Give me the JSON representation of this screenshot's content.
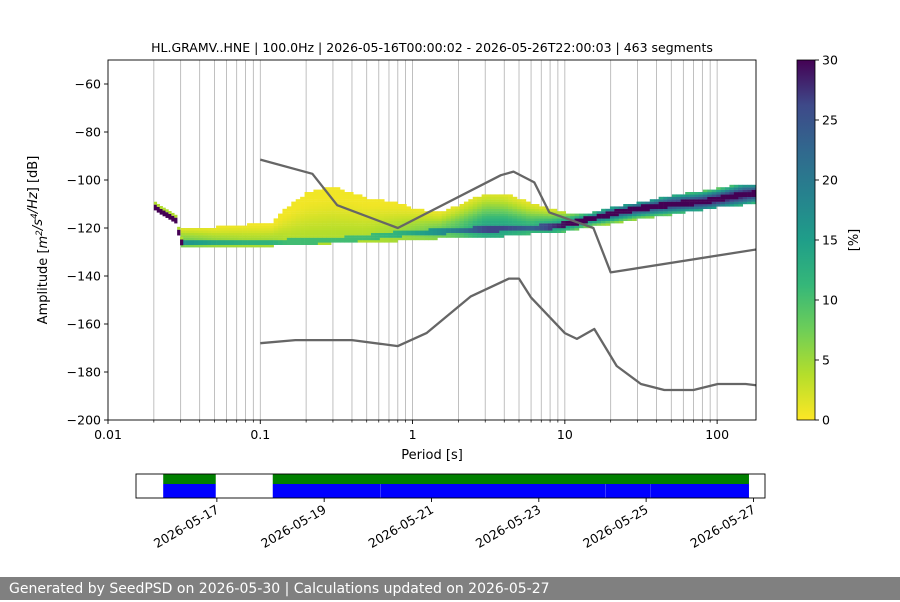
{
  "title": "HL.GRAMV..HNE | 100.0Hz | 2026-05-16T00:00:02 - 2026-05-26T22:00:03 | 463 segments",
  "footer": "Generated by SeedPSD on 2026-05-30 | Calculations updated on 2026-05-27",
  "colors": {
    "nlnm_nhnm": "#666666",
    "grid": "#b0b0b0",
    "availability_top": "#008000",
    "availability_bottom": "#0000ff",
    "footer_bg": "#808080"
  },
  "chart_data": [
    {
      "type": "heatmap",
      "subtype": "probabilistic power spectral density",
      "title": "HL.GRAMV..HNE | 100.0Hz | 2026-05-16T00:00:02 - 2026-05-26T22:00:03 | 463 segments",
      "xlabel": "Period [s]",
      "ylabel": "Amplitude [m²/s⁴/Hz] [dB]",
      "xscale": "log",
      "xlim": [
        0.01,
        180
      ],
      "ylim": [
        -200,
        -50
      ],
      "xticks": [
        0.01,
        0.1,
        1,
        10,
        100
      ],
      "xtick_labels": [
        "0.01",
        "0.1",
        "1",
        "10",
        "100"
      ],
      "yticks": [
        -200,
        -180,
        -160,
        -140,
        -120,
        -100,
        -80,
        -60
      ],
      "ytick_labels": [
        "−200",
        "−180",
        "−160",
        "−140",
        "−120",
        "−100",
        "−80",
        "−60"
      ],
      "grid": "vertical at log minor ticks",
      "colormap": "viridis_r",
      "colorbar": {
        "label": "[%]",
        "range": [
          0,
          30
        ],
        "ticks": [
          0,
          5,
          10,
          15,
          20,
          25,
          30
        ],
        "tick_labels": [
          "0",
          "5",
          "10",
          "15",
          "20",
          "25",
          "30"
        ]
      },
      "mode_curve": {
        "period": [
          0.02,
          0.022,
          0.025,
          0.028,
          0.03,
          0.05,
          0.1,
          0.2,
          0.3,
          0.5,
          0.8,
          1,
          1.5,
          2,
          3,
          5,
          8,
          10,
          15,
          20,
          30,
          50,
          80,
          100,
          150,
          180
        ],
        "db": [
          -111,
          -113,
          -115,
          -117,
          -126,
          -126,
          -126,
          -125.5,
          -125,
          -124,
          -122.5,
          -122,
          -121.5,
          -121,
          -120.5,
          -120,
          -119.5,
          -118.5,
          -116,
          -114,
          -112,
          -110,
          -109,
          -108,
          -106,
          -105.5
        ]
      },
      "distribution": [
        {
          "period": 0.03,
          "low": -128,
          "high": -120,
          "peak": 8
        },
        {
          "period": 0.05,
          "low": -128,
          "high": -120,
          "peak": 6
        },
        {
          "period": 0.08,
          "low": -128,
          "high": -119,
          "peak": 5
        },
        {
          "period": 0.12,
          "low": -127,
          "high": -118,
          "peak": 5
        },
        {
          "period": 0.15,
          "low": -127,
          "high": -112,
          "peak": 4
        },
        {
          "period": 0.2,
          "low": -127,
          "high": -106,
          "peak": 4
        },
        {
          "period": 0.3,
          "low": -126,
          "high": -103,
          "peak": 4
        },
        {
          "period": 0.5,
          "low": -126,
          "high": -108,
          "peak": 4
        },
        {
          "period": 0.8,
          "low": -125,
          "high": -110,
          "peak": 5
        },
        {
          "period": 1,
          "low": -125,
          "high": -112,
          "peak": 6
        },
        {
          "period": 1.5,
          "low": -124,
          "high": -114,
          "peak": 8
        },
        {
          "period": 2,
          "low": -124,
          "high": -111,
          "peak": 10
        },
        {
          "period": 3,
          "low": -124,
          "high": -106,
          "peak": 14
        },
        {
          "period": 4,
          "low": -123,
          "high": -106,
          "peak": 14
        },
        {
          "period": 6,
          "low": -122,
          "high": -110,
          "peak": 12
        },
        {
          "period": 10,
          "low": -121,
          "high": -114,
          "peak": 16
        },
        {
          "period": 15,
          "low": -119,
          "high": -114,
          "peak": 20
        },
        {
          "period": 20,
          "low": -118,
          "high": -112,
          "peak": 24
        },
        {
          "period": 30,
          "low": -116,
          "high": -110,
          "peak": 26
        },
        {
          "period": 50,
          "low": -114,
          "high": -107,
          "peak": 28
        },
        {
          "period": 80,
          "low": -112,
          "high": -105,
          "peak": 29
        },
        {
          "period": 100,
          "low": -111,
          "high": -104,
          "peak": 30
        },
        {
          "period": 150,
          "low": -110,
          "high": -102,
          "peak": 30
        },
        {
          "period": 180,
          "low": -109,
          "high": -102,
          "peak": 30
        }
      ],
      "nhnm": {
        "period": [
          0.1,
          0.22,
          0.32,
          0.8,
          3.8,
          4.6,
          6.3,
          7.9,
          15.4,
          20,
          354.8
        ],
        "db": [
          -91.5,
          -97.4,
          -110.5,
          -120,
          -98,
          -96.5,
          -101,
          -113.5,
          -120,
          -138.5,
          -126
        ]
      },
      "nlnm": {
        "period": [
          0.1,
          0.17,
          0.4,
          0.8,
          1.24,
          2.4,
          4.3,
          5,
          6,
          10,
          12,
          15.6,
          21.9,
          31.6,
          45,
          70,
          101,
          154,
          328,
          600
        ],
        "db": [
          -168,
          -166.7,
          -166.7,
          -169.2,
          -163.7,
          -148.6,
          -141.1,
          -141.1,
          -149,
          -163.8,
          -166.2,
          -162.1,
          -177.5,
          -185,
          -187.5,
          -187.5,
          -185,
          -185,
          -187.5,
          -184.4
        ]
      }
    },
    {
      "type": "timeline",
      "subtype": "data availability",
      "xtick_labels": [
        "2026-05-17",
        "2026-05-19",
        "2026-05-21",
        "2026-05-23",
        "2026-05-25",
        "2026-05-27"
      ],
      "xtick_dates": [
        "2026-05-17",
        "2026-05-19",
        "2026-05-21",
        "2026-05-23",
        "2026-05-25",
        "2026-05-27"
      ],
      "xlim": [
        "2026-05-15T11:50",
        "2026-05-27T05:10"
      ],
      "top_segments": [
        [
          "2026-05-16T00:00",
          "2026-05-16T23:30"
        ],
        [
          "2026-05-18T01:00",
          "2026-05-26T22:00"
        ]
      ],
      "bottom_segments": [
        [
          "2026-05-16T00:00",
          "2026-05-16T23:30"
        ],
        [
          "2026-05-18T01:00",
          "2026-05-20T01:00"
        ],
        [
          "2026-05-20T01:05",
          "2026-05-24T05:55"
        ],
        [
          "2026-05-24T06:00",
          "2026-05-25T01:55"
        ],
        [
          "2026-05-25T02:00",
          "2026-05-26T22:00"
        ]
      ]
    }
  ]
}
